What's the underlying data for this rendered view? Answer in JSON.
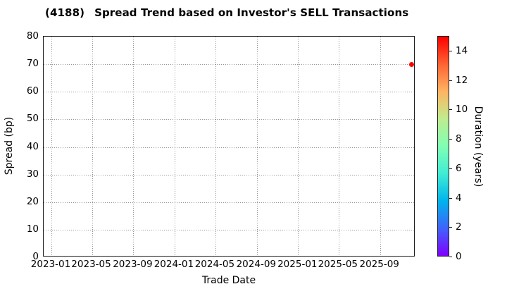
{
  "title": {
    "code": "(4188)",
    "text": "Spread Trend based on Investor's SELL Transactions"
  },
  "colors": {
    "background": "#ffffff",
    "spine": "#1a1a1a",
    "grid": "#949494",
    "text": "#000000",
    "point": "#ff0000"
  },
  "chart_data": {
    "type": "scatter",
    "title": "(4188)  Spread Trend based on Investor's SELL Transactions",
    "xlabel": "Trade Date",
    "ylabel": "Spread (bp)",
    "ylim": [
      0,
      80
    ],
    "yticks": [
      0,
      10,
      20,
      30,
      40,
      50,
      60,
      70,
      80
    ],
    "xlim": [
      "2022-12-09",
      "2025-12-15"
    ],
    "xticks": [
      "2023-01",
      "2023-05",
      "2023-09",
      "2024-01",
      "2024-05",
      "2024-09",
      "2025-01",
      "2025-05",
      "2025-09"
    ],
    "grid": true,
    "grid_style": "dotted",
    "legend_position": "none",
    "points": [
      {
        "date": "2025-12-04",
        "spread_bp": 70,
        "duration_years": 15,
        "color": "#ff0000"
      }
    ],
    "colorbar": {
      "label": "Duration (years)",
      "min": 0,
      "max": 15,
      "ticks": [
        0,
        2,
        4,
        6,
        8,
        10,
        12,
        14
      ],
      "colormap": "rainbow",
      "stops": [
        "#8000ff",
        "#4062fa",
        "#00b4ec",
        "#40ecd4",
        "#80ffb4",
        "#bfec8e",
        "#ffb462",
        "#ff6232",
        "#ff0000"
      ]
    }
  }
}
